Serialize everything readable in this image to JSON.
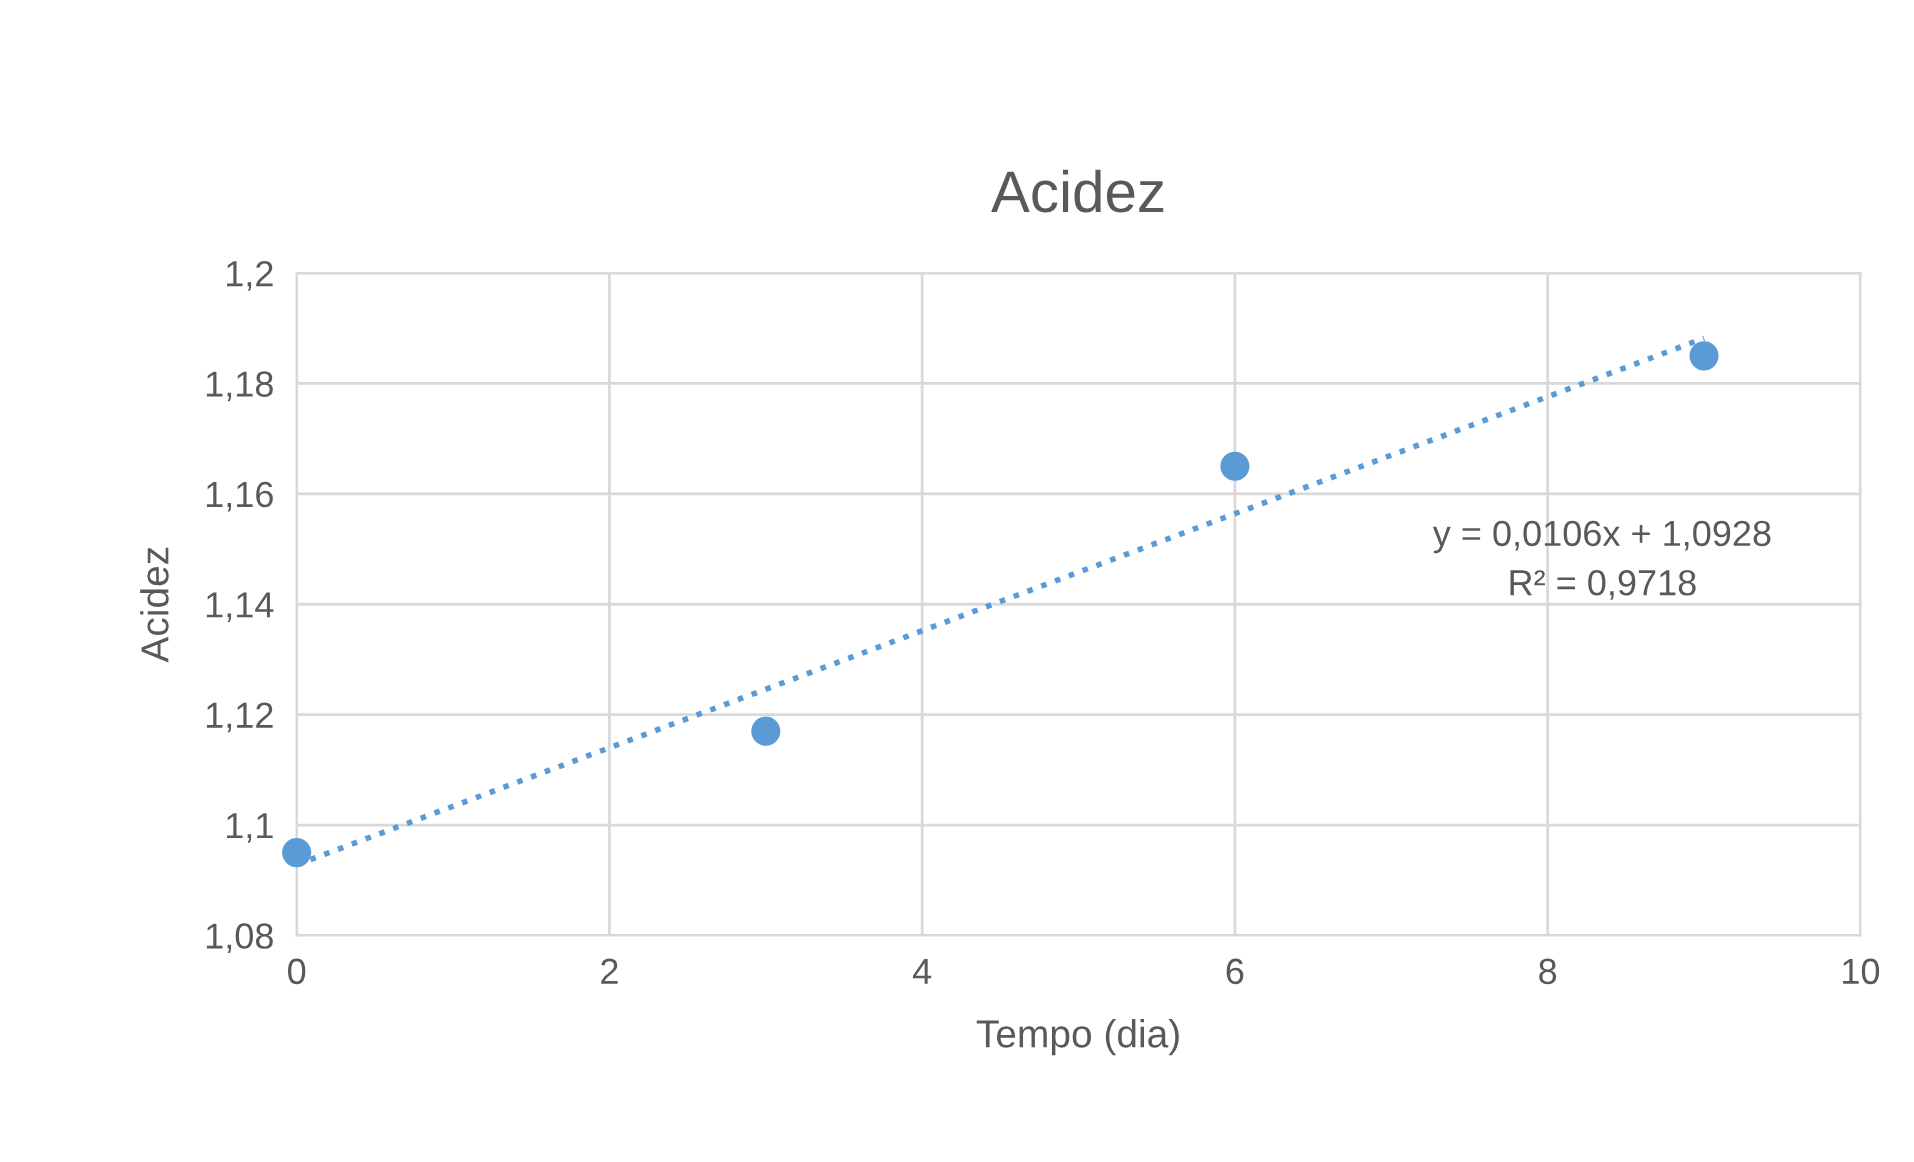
{
  "chart_data": {
    "type": "scatter",
    "title": "Acidez",
    "xlabel": "Tempo (dia)",
    "ylabel": "Acidez",
    "x": [
      0,
      3,
      6,
      9
    ],
    "series": [
      {
        "color": "#5b9bd5",
        "marker": "circle",
        "values": [
          1.095,
          1.117,
          1.165,
          1.185
        ]
      },
      {
        "type": "line",
        "color": "#5b9bd5",
        "marker": "none",
        "line_style": "dotted",
        "x": [
          0,
          9
        ],
        "values": [
          1.0928,
          1.1882
        ]
      }
    ],
    "xlim": [
      0,
      10
    ],
    "xticks": [
      0,
      2,
      4,
      6,
      8,
      10
    ],
    "ylim": [
      1.08,
      1.2
    ],
    "yticks": [
      {
        "value": 1.08,
        "label": "1,08"
      },
      {
        "value": 1.1,
        "label": "1,1"
      },
      {
        "value": 1.12,
        "label": "1,12"
      },
      {
        "value": 1.14,
        "label": "1,14"
      },
      {
        "value": 1.16,
        "label": "1,16"
      },
      {
        "value": 1.18,
        "label": "1,18"
      },
      {
        "value": 1.2,
        "label": "1,2"
      }
    ],
    "grid": true,
    "annotations": [
      "y = 0,0106x + 1,0928",
      "R² = 0,9718"
    ]
  }
}
